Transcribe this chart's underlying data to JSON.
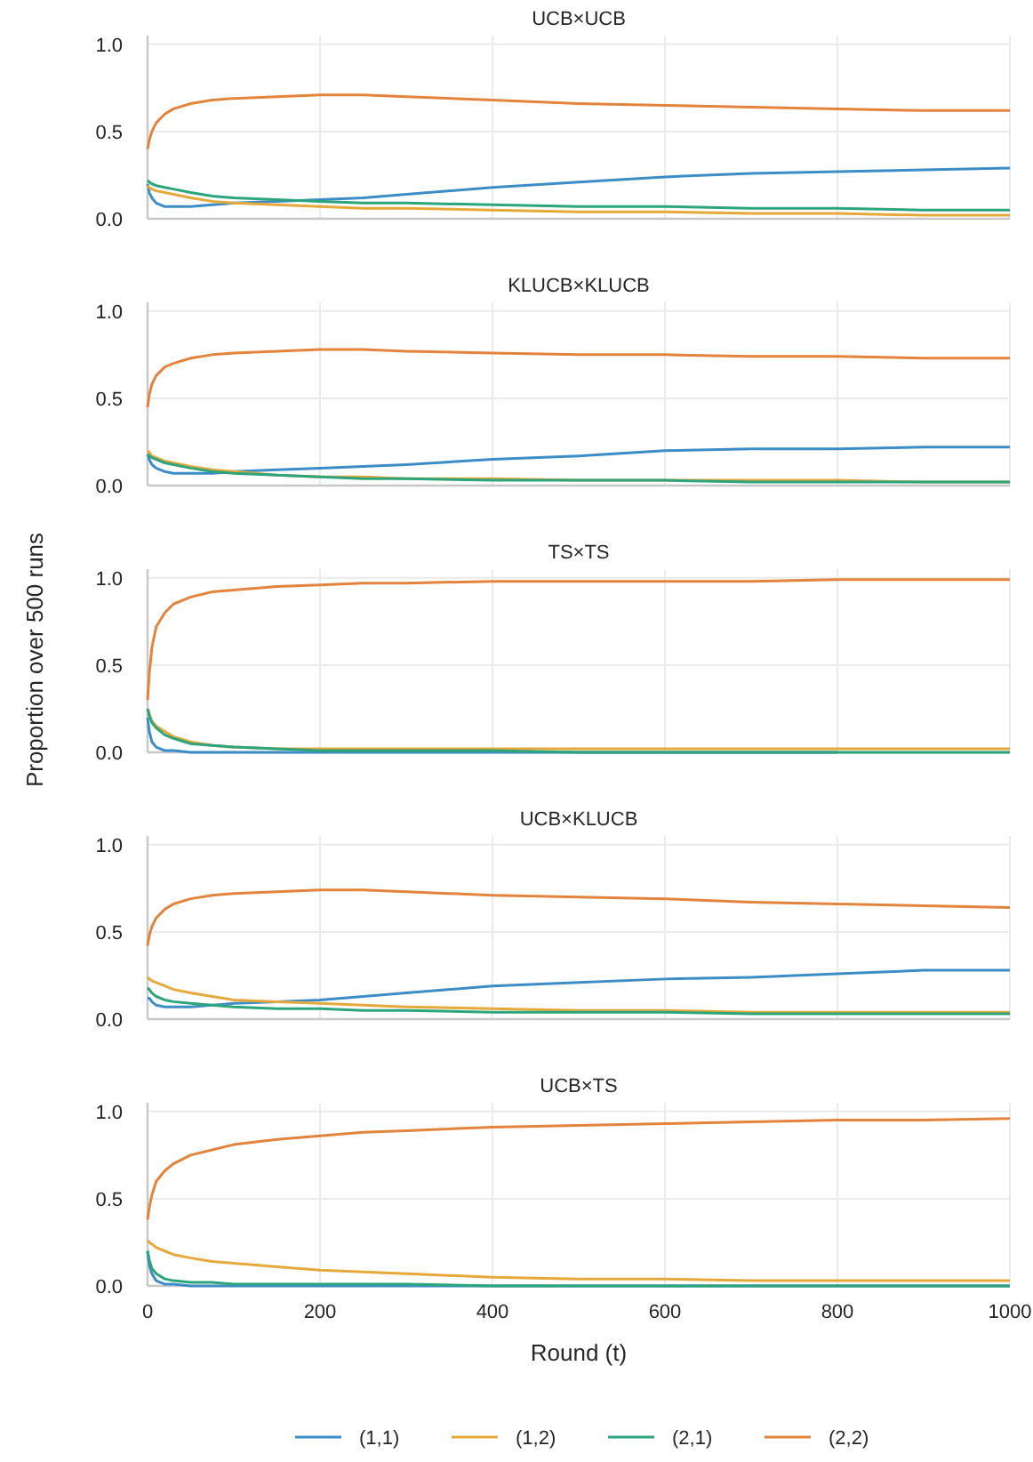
{
  "chart_data": [
    {
      "type": "line",
      "title": "UCB×UCB",
      "x": [
        0,
        2,
        5,
        10,
        20,
        30,
        50,
        75,
        100,
        150,
        200,
        250,
        300,
        400,
        500,
        600,
        700,
        800,
        900,
        1000
      ],
      "xlim": [
        0,
        1000
      ],
      "xticks": [
        0,
        200,
        400,
        600,
        800,
        1000
      ],
      "ylim": [
        0,
        1.05
      ],
      "yticks": [
        {
          "value": 0,
          "label": "0.0"
        },
        {
          "value": 0.5,
          "label": "0.5"
        },
        {
          "value": 1,
          "label": "1.0"
        }
      ],
      "grid": true,
      "tick_labels": "y",
      "series": [
        {
          "color": "#3c8dc5",
          "values": [
            0.2,
            0.15,
            0.12,
            0.09,
            0.07,
            0.07,
            0.07,
            0.08,
            0.09,
            0.1,
            0.11,
            0.12,
            0.14,
            0.18,
            0.21,
            0.24,
            0.26,
            0.27,
            0.28,
            0.29
          ]
        },
        {
          "color": "#e5a93b",
          "values": [
            0.19,
            0.18,
            0.17,
            0.16,
            0.15,
            0.14,
            0.12,
            0.1,
            0.09,
            0.08,
            0.07,
            0.06,
            0.06,
            0.05,
            0.04,
            0.04,
            0.03,
            0.03,
            0.02,
            0.02
          ]
        },
        {
          "color": "#2ca47c",
          "values": [
            0.22,
            0.21,
            0.2,
            0.19,
            0.18,
            0.17,
            0.15,
            0.13,
            0.12,
            0.11,
            0.1,
            0.09,
            0.09,
            0.08,
            0.07,
            0.07,
            0.06,
            0.06,
            0.05,
            0.05
          ]
        },
        {
          "color": "#e2843d",
          "values": [
            0.4,
            0.45,
            0.5,
            0.55,
            0.6,
            0.63,
            0.66,
            0.68,
            0.69,
            0.7,
            0.71,
            0.71,
            0.7,
            0.68,
            0.66,
            0.65,
            0.64,
            0.63,
            0.62,
            0.62
          ]
        }
      ]
    },
    {
      "type": "line",
      "title": "KLUCB×KLUCB",
      "x": [
        0,
        2,
        5,
        10,
        20,
        30,
        50,
        75,
        100,
        150,
        200,
        250,
        300,
        400,
        500,
        600,
        700,
        800,
        900,
        1000
      ],
      "xlim": [
        0,
        1000
      ],
      "xticks": [
        0,
        200,
        400,
        600,
        800,
        1000
      ],
      "ylim": [
        0,
        1.05
      ],
      "yticks": [
        {
          "value": 0,
          "label": "0.0"
        },
        {
          "value": 0.5,
          "label": "0.5"
        },
        {
          "value": 1,
          "label": "1.0"
        }
      ],
      "grid": true,
      "tick_labels": "y",
      "series": [
        {
          "color": "#3c8dc5",
          "values": [
            0.18,
            0.15,
            0.12,
            0.1,
            0.08,
            0.07,
            0.07,
            0.07,
            0.08,
            0.09,
            0.1,
            0.11,
            0.12,
            0.15,
            0.17,
            0.2,
            0.21,
            0.21,
            0.22,
            0.22
          ]
        },
        {
          "color": "#e5a93b",
          "values": [
            0.2,
            0.19,
            0.17,
            0.16,
            0.14,
            0.13,
            0.11,
            0.09,
            0.08,
            0.06,
            0.05,
            0.05,
            0.04,
            0.04,
            0.03,
            0.03,
            0.03,
            0.03,
            0.02,
            0.02
          ]
        },
        {
          "color": "#2ca47c",
          "values": [
            0.18,
            0.17,
            0.16,
            0.15,
            0.13,
            0.12,
            0.1,
            0.08,
            0.07,
            0.06,
            0.05,
            0.04,
            0.04,
            0.03,
            0.03,
            0.03,
            0.02,
            0.02,
            0.02,
            0.02
          ]
        },
        {
          "color": "#e2843d",
          "values": [
            0.45,
            0.52,
            0.58,
            0.63,
            0.68,
            0.7,
            0.73,
            0.75,
            0.76,
            0.77,
            0.78,
            0.78,
            0.77,
            0.76,
            0.75,
            0.75,
            0.74,
            0.74,
            0.73,
            0.73
          ]
        }
      ]
    },
    {
      "type": "line",
      "title": "TS×TS",
      "ylabel": "Proportion over 500 runs",
      "x": [
        0,
        2,
        5,
        10,
        20,
        30,
        50,
        75,
        100,
        150,
        200,
        250,
        300,
        400,
        500,
        600,
        700,
        800,
        900,
        1000
      ],
      "xlim": [
        0,
        1000
      ],
      "xticks": [
        0,
        200,
        400,
        600,
        800,
        1000
      ],
      "ylim": [
        0,
        1.05
      ],
      "yticks": [
        {
          "value": 0,
          "label": "0.0"
        },
        {
          "value": 0.5,
          "label": "0.5"
        },
        {
          "value": 1,
          "label": "1.0"
        }
      ],
      "grid": true,
      "tick_labels": "y",
      "series": [
        {
          "color": "#3c8dc5",
          "values": [
            0.2,
            0.12,
            0.06,
            0.03,
            0.01,
            0.01,
            0,
            0,
            0,
            0,
            0,
            0,
            0,
            0,
            0,
            0,
            0,
            0,
            null,
            null
          ]
        },
        {
          "color": "#e5a93b",
          "values": [
            0.25,
            0.22,
            0.18,
            0.15,
            0.12,
            0.09,
            0.06,
            0.04,
            0.03,
            0.02,
            0.02,
            0.02,
            0.02,
            0.02,
            0.02,
            0.02,
            0.02,
            0.02,
            0.02,
            0.02
          ]
        },
        {
          "color": "#2ca47c",
          "values": [
            0.25,
            0.21,
            0.17,
            0.14,
            0.1,
            0.08,
            0.05,
            0.04,
            0.03,
            0.02,
            0.01,
            0.01,
            0.01,
            0.01,
            0,
            0,
            0,
            0,
            0,
            0
          ]
        },
        {
          "color": "#e2843d",
          "values": [
            0.3,
            0.45,
            0.6,
            0.72,
            0.8,
            0.85,
            0.89,
            0.92,
            0.93,
            0.95,
            0.96,
            0.97,
            0.97,
            0.98,
            0.98,
            0.98,
            0.98,
            0.99,
            0.99,
            0.99
          ]
        }
      ]
    },
    {
      "type": "line",
      "title": "UCB×KLUCB",
      "x": [
        0,
        2,
        5,
        10,
        20,
        30,
        50,
        75,
        100,
        150,
        200,
        250,
        300,
        400,
        500,
        600,
        700,
        800,
        900,
        1000
      ],
      "xlim": [
        0,
        1000
      ],
      "xticks": [
        0,
        200,
        400,
        600,
        800,
        1000
      ],
      "ylim": [
        0,
        1.05
      ],
      "yticks": [
        {
          "value": 0,
          "label": "0.0"
        },
        {
          "value": 0.5,
          "label": "0.5"
        },
        {
          "value": 1,
          "label": "1.0"
        }
      ],
      "grid": true,
      "tick_labels": "y",
      "series": [
        {
          "color": "#3c8dc5",
          "values": [
            0.12,
            0.12,
            0.1,
            0.08,
            0.07,
            0.07,
            0.07,
            0.08,
            0.09,
            0.1,
            0.11,
            0.13,
            0.15,
            0.19,
            0.21,
            0.23,
            0.24,
            0.26,
            0.28,
            0.28
          ]
        },
        {
          "color": "#e5a93b",
          "values": [
            0.24,
            0.23,
            0.22,
            0.21,
            0.19,
            0.17,
            0.15,
            0.13,
            0.11,
            0.1,
            0.09,
            0.08,
            0.07,
            0.06,
            0.05,
            0.05,
            0.04,
            0.04,
            0.04,
            0.04
          ]
        },
        {
          "color": "#2ca47c",
          "values": [
            0.18,
            0.17,
            0.15,
            0.13,
            0.11,
            0.1,
            0.09,
            0.08,
            0.07,
            0.06,
            0.06,
            0.05,
            0.05,
            0.04,
            0.04,
            0.04,
            0.03,
            0.03,
            0.03,
            0.03
          ]
        },
        {
          "color": "#e2843d",
          "values": [
            0.42,
            0.48,
            0.53,
            0.58,
            0.63,
            0.66,
            0.69,
            0.71,
            0.72,
            0.73,
            0.74,
            0.74,
            0.73,
            0.71,
            0.7,
            0.69,
            0.67,
            0.66,
            0.65,
            0.64
          ]
        }
      ]
    },
    {
      "type": "line",
      "title": "UCB×TS",
      "xlabel": "Round (t)",
      "legend": "bottom",
      "x": [
        0,
        2,
        5,
        10,
        20,
        30,
        50,
        75,
        100,
        150,
        200,
        250,
        300,
        400,
        500,
        600,
        700,
        800,
        900,
        1000
      ],
      "xlim": [
        0,
        1000
      ],
      "xticks": [
        0,
        200,
        400,
        600,
        800,
        1000
      ],
      "ylim": [
        0,
        1.05
      ],
      "yticks": [
        {
          "value": 0,
          "label": "0.0"
        },
        {
          "value": 0.5,
          "label": "0.5"
        },
        {
          "value": 1,
          "label": "1.0"
        }
      ],
      "grid": true,
      "series": [
        {
          "name": "(1,1)",
          "color": "#3c8dc5",
          "values": [
            0.2,
            0.12,
            0.07,
            0.03,
            0.01,
            0.01,
            0,
            0,
            0,
            0,
            0,
            0,
            0,
            0,
            0,
            0,
            0,
            0,
            0,
            0
          ]
        },
        {
          "name": "(1,2)",
          "color": "#e5a93b",
          "values": [
            0.26,
            0.25,
            0.24,
            0.22,
            0.2,
            0.18,
            0.16,
            0.14,
            0.13,
            0.11,
            0.09,
            0.08,
            0.07,
            0.05,
            0.04,
            0.04,
            0.03,
            0.03,
            0.03,
            0.03
          ]
        },
        {
          "name": "(2,1)",
          "color": "#2ca47c",
          "values": [
            0.2,
            0.15,
            0.1,
            0.07,
            0.04,
            0.03,
            0.02,
            0.02,
            0.01,
            0.01,
            0.01,
            0.01,
            0.01,
            0,
            0,
            0,
            0,
            0,
            0,
            0
          ]
        },
        {
          "name": "(2,2)",
          "color": "#e2843d",
          "values": [
            0.38,
            0.45,
            0.52,
            0.6,
            0.66,
            0.7,
            0.75,
            0.78,
            0.81,
            0.84,
            0.86,
            0.88,
            0.89,
            0.91,
            0.92,
            0.93,
            0.94,
            0.95,
            0.95,
            0.96
          ]
        }
      ]
    }
  ]
}
